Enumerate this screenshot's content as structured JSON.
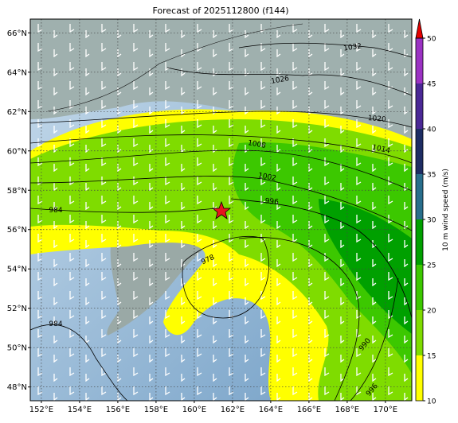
{
  "map": {
    "title": "Forecast of 2025112800 (f144)",
    "lon_range": [
      151.42,
      171.38
    ],
    "lat_range": [
      47.3,
      66.7
    ],
    "lon_ticks": [
      {
        "value": 152,
        "label": "152°E"
      },
      {
        "value": 154,
        "label": "154°E"
      },
      {
        "value": 156,
        "label": "156°E"
      },
      {
        "value": 158,
        "label": "158°E"
      },
      {
        "value": 160,
        "label": "160°E"
      },
      {
        "value": 162,
        "label": "162°E"
      },
      {
        "value": 164,
        "label": "164°E"
      },
      {
        "value": 166,
        "label": "166°E"
      },
      {
        "value": 168,
        "label": "168°E"
      },
      {
        "value": 170,
        "label": "170°E"
      }
    ],
    "lat_ticks": [
      {
        "value": 48,
        "label": "48°N"
      },
      {
        "value": 50,
        "label": "50°N"
      },
      {
        "value": 52,
        "label": "52°N"
      },
      {
        "value": 54,
        "label": "54°N"
      },
      {
        "value": 56,
        "label": "56°N"
      },
      {
        "value": 58,
        "label": "58°N"
      },
      {
        "value": 60,
        "label": "60°N"
      },
      {
        "value": 62,
        "label": "62°N"
      },
      {
        "value": 64,
        "label": "64°N"
      },
      {
        "value": 66,
        "label": "66°N"
      }
    ],
    "isobar_labels": [
      "1032",
      "1026",
      "1020",
      "1014",
      "1008",
      "1002",
      "996",
      "984",
      "978",
      "984",
      "990",
      "996"
    ]
  },
  "colorbar": {
    "label": "10 m wind speed (m/s)",
    "ticks": [
      10,
      15,
      20,
      25,
      30,
      35,
      40,
      45,
      50
    ],
    "colors": [
      "#ffff00",
      "#7fdc00",
      "#3cc800",
      "#00a000",
      "#286e8c",
      "#1e2d64",
      "#4b2896",
      "#9b32c3"
    ],
    "extend_color": "#e60000"
  }
}
